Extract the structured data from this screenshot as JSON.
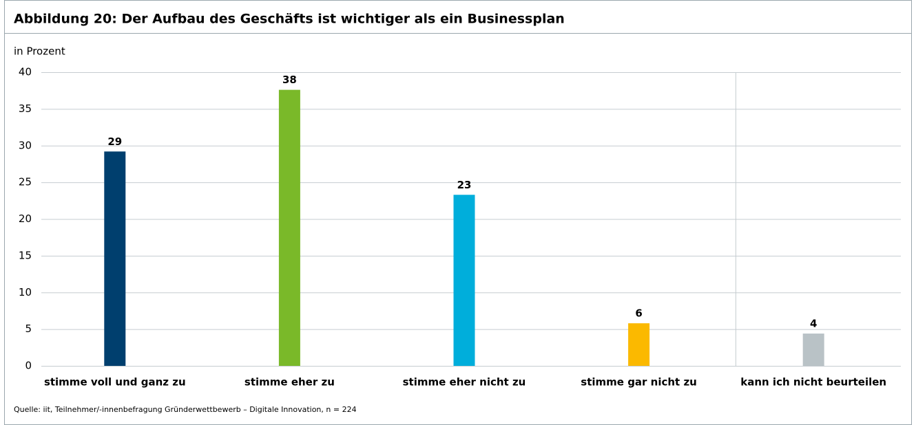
{
  "chart_data": {
    "type": "bar",
    "title": "Abbildung 20: Der Aufbau des Geschäfts ist wichtiger als ein Businessplan",
    "y_label": "in Prozent",
    "categories": [
      "stimme voll und ganz zu",
      "stimme eher zu",
      "stimme eher nicht zu",
      "stimme gar nicht zu",
      "kann ich nicht beurteilen"
    ],
    "values": [
      29.2,
      37.6,
      23.3,
      5.8,
      4.4
    ],
    "value_labels": [
      "29",
      "38",
      "23",
      "6",
      "4"
    ],
    "colors": [
      "#003f6e",
      "#7ab929",
      "#00aedb",
      "#fbb900",
      "#b9c2c6"
    ],
    "ylim": [
      0,
      40
    ],
    "yticks": [
      0,
      5,
      10,
      15,
      20,
      25,
      30,
      35,
      40
    ],
    "grid": true,
    "source": "Quelle: iit, Teilnehmer/-innenbefragung Gründerwettbewerb – Digitale Innovation, n = 224"
  }
}
